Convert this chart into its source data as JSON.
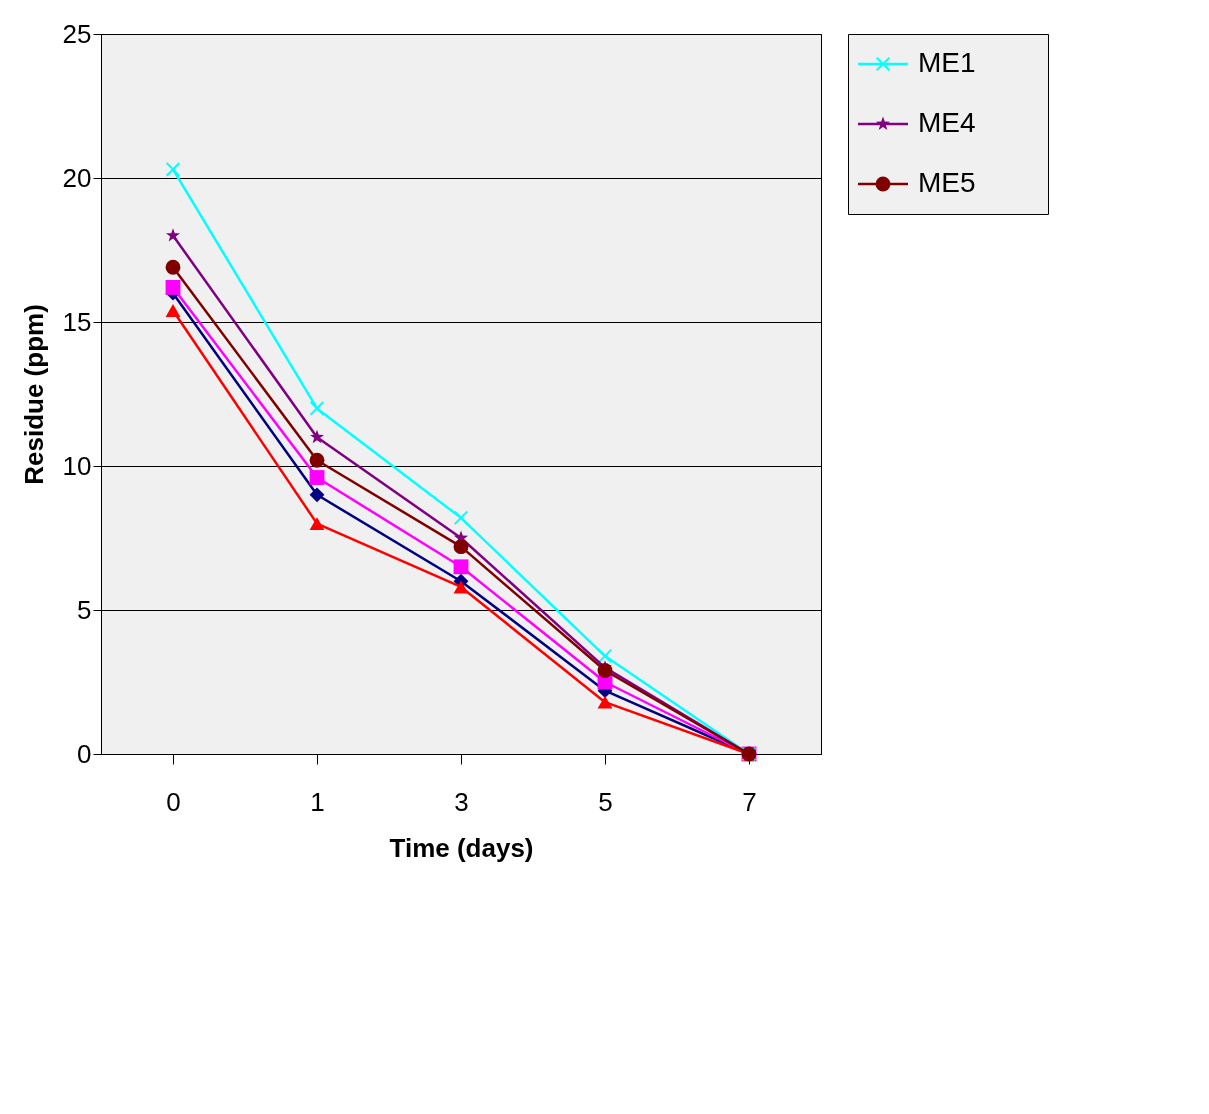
{
  "chart_data": {
    "type": "line",
    "xlabel": "Time (days)",
    "ylabel": "Residue (ppm)",
    "categories": [
      "0",
      "1",
      "3",
      "5",
      "7"
    ],
    "series": [
      {
        "color": "#000080",
        "marker": "diamond",
        "values": [
          16.0,
          9.0,
          6.0,
          2.2,
          0
        ]
      },
      {
        "color": "#ff00ff",
        "marker": "square",
        "values": [
          16.2,
          9.6,
          6.5,
          2.5,
          0
        ]
      },
      {
        "color": "#ff0000",
        "marker": "triangle",
        "values": [
          15.4,
          8.0,
          5.8,
          1.8,
          0
        ]
      },
      {
        "name": "ME1",
        "color": "#00ffff",
        "marker": "cross",
        "values": [
          20.3,
          12.0,
          8.2,
          3.4,
          0
        ]
      },
      {
        "name": "ME4",
        "color": "#800080",
        "marker": "star",
        "values": [
          18.0,
          11.0,
          7.5,
          3.0,
          0
        ]
      },
      {
        "name": "ME5",
        "color": "#800000",
        "marker": "circle",
        "values": [
          16.9,
          10.2,
          7.2,
          2.9,
          0
        ]
      }
    ],
    "ylim": [
      0,
      25
    ],
    "yticks": [
      0,
      5,
      10,
      15,
      20,
      25
    ],
    "grid": "y",
    "legend": "right",
    "line_style": "solid"
  }
}
